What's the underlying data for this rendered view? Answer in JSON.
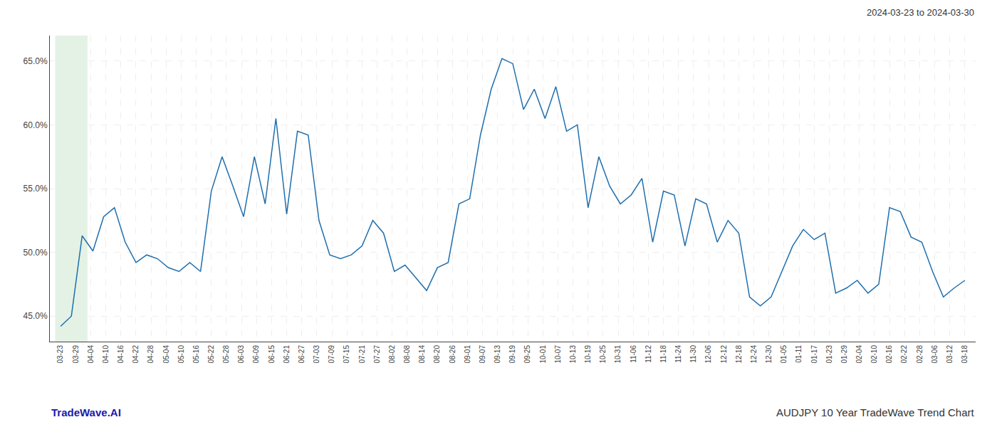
{
  "chart_data": {
    "type": "line",
    "annotations": [
      {
        "text": "2024-03-23 to 2024-03-30",
        "color": "#333333"
      },
      {
        "text": "TradeWave.AI",
        "color": "#1a1aaa"
      },
      {
        "text": "AUDJPY 10 Year TradeWave Trend Chart",
        "color": "#333333"
      }
    ],
    "color": "#1f6fad",
    "values": [
      44.2,
      45.0,
      51.3,
      50.1,
      52.8,
      53.5,
      50.8,
      49.2,
      49.8,
      49.5,
      48.8,
      48.5,
      49.2,
      48.5,
      54.8,
      57.5,
      55.2,
      52.8,
      57.5,
      53.8,
      60.5,
      53.0,
      59.5,
      59.2,
      52.5,
      49.8,
      49.5,
      49.8,
      50.5,
      52.5,
      51.5,
      48.5,
      49.0,
      48.0,
      47.0,
      48.8,
      49.2,
      53.8,
      54.2,
      59.2,
      62.8,
      65.2,
      64.8,
      61.2,
      62.8,
      60.5,
      63.0,
      59.5,
      60.0,
      53.5,
      57.5,
      55.2,
      53.8,
      54.5,
      55.8,
      50.8,
      54.8,
      54.5,
      50.5,
      54.2,
      53.8,
      50.8,
      52.5,
      51.5,
      46.5,
      45.8,
      46.5,
      48.5,
      50.5,
      51.8,
      51.0,
      51.5,
      46.8,
      47.2,
      47.8,
      46.8,
      47.5,
      53.5,
      53.2,
      51.2,
      50.8,
      48.5,
      46.5,
      47.2,
      47.8
    ],
    "xlim": [
      -1,
      85
    ],
    "xticks": [
      {
        "value": 0,
        "label": "03-23"
      },
      {
        "value": 1.4,
        "label": "03-29"
      },
      {
        "value": 2.8,
        "label": "04-04"
      },
      {
        "value": 4.2,
        "label": "04-10"
      },
      {
        "value": 5.6,
        "label": "04-16"
      },
      {
        "value": 7,
        "label": "04-22"
      },
      {
        "value": 8.4,
        "label": "04-28"
      },
      {
        "value": 9.8,
        "label": "05-04"
      },
      {
        "value": 11.2,
        "label": "05-10"
      },
      {
        "value": 12.6,
        "label": "05-16"
      },
      {
        "value": 14,
        "label": "05-22"
      },
      {
        "value": 15.4,
        "label": "05-28"
      },
      {
        "value": 16.8,
        "label": "06-03"
      },
      {
        "value": 18.2,
        "label": "06-09"
      },
      {
        "value": 19.6,
        "label": "06-15"
      },
      {
        "value": 21,
        "label": "06-21"
      },
      {
        "value": 22.4,
        "label": "06-27"
      },
      {
        "value": 23.8,
        "label": "07-03"
      },
      {
        "value": 25.2,
        "label": "07-09"
      },
      {
        "value": 26.6,
        "label": "07-15"
      },
      {
        "value": 28,
        "label": "07-21"
      },
      {
        "value": 29.4,
        "label": "07-27"
      },
      {
        "value": 30.8,
        "label": "08-02"
      },
      {
        "value": 32.2,
        "label": "08-08"
      },
      {
        "value": 33.6,
        "label": "08-14"
      },
      {
        "value": 35,
        "label": "08-20"
      },
      {
        "value": 36.4,
        "label": "08-26"
      },
      {
        "value": 37.8,
        "label": "09-01"
      },
      {
        "value": 39.2,
        "label": "09-07"
      },
      {
        "value": 40.6,
        "label": "09-13"
      },
      {
        "value": 42,
        "label": "09-19"
      },
      {
        "value": 43.4,
        "label": "09-25"
      },
      {
        "value": 44.8,
        "label": "10-01"
      },
      {
        "value": 46.2,
        "label": "10-07"
      },
      {
        "value": 47.6,
        "label": "10-13"
      },
      {
        "value": 49,
        "label": "10-19"
      },
      {
        "value": 50.4,
        "label": "10-25"
      },
      {
        "value": 51.8,
        "label": "10-31"
      },
      {
        "value": 53.2,
        "label": "11-06"
      },
      {
        "value": 54.6,
        "label": "11-12"
      },
      {
        "value": 56,
        "label": "11-18"
      },
      {
        "value": 57.4,
        "label": "11-24"
      },
      {
        "value": 58.8,
        "label": "11-30"
      },
      {
        "value": 60.2,
        "label": "12-06"
      },
      {
        "value": 61.6,
        "label": "12-12"
      },
      {
        "value": 63,
        "label": "12-18"
      },
      {
        "value": 64.4,
        "label": "12-24"
      },
      {
        "value": 65.8,
        "label": "12-30"
      },
      {
        "value": 67.2,
        "label": "01-05"
      },
      {
        "value": 68.6,
        "label": "01-11"
      },
      {
        "value": 70,
        "label": "01-17"
      },
      {
        "value": 71.4,
        "label": "01-23"
      },
      {
        "value": 72.8,
        "label": "01-29"
      },
      {
        "value": 74.2,
        "label": "02-04"
      },
      {
        "value": 75.6,
        "label": "02-10"
      },
      {
        "value": 77,
        "label": "02-16"
      },
      {
        "value": 78.4,
        "label": "02-22"
      },
      {
        "value": 79.8,
        "label": "02-28"
      },
      {
        "value": 81.2,
        "label": "03-06"
      },
      {
        "value": 82.6,
        "label": "03-12"
      },
      {
        "value": 84,
        "label": "03-18"
      }
    ],
    "ylim": [
      43.0,
      67.0
    ],
    "yticks": [
      {
        "value": 45.0,
        "label": "45.0%"
      },
      {
        "value": 50.0,
        "label": "50.0%"
      },
      {
        "value": 55.0,
        "label": "55.0%"
      },
      {
        "value": 60.0,
        "label": "60.0%"
      },
      {
        "value": 65.0,
        "label": "65.0%"
      }
    ],
    "highlight": {
      "from": 0,
      "to": 2,
      "color": "#c8e6c9"
    },
    "grid": true
  }
}
